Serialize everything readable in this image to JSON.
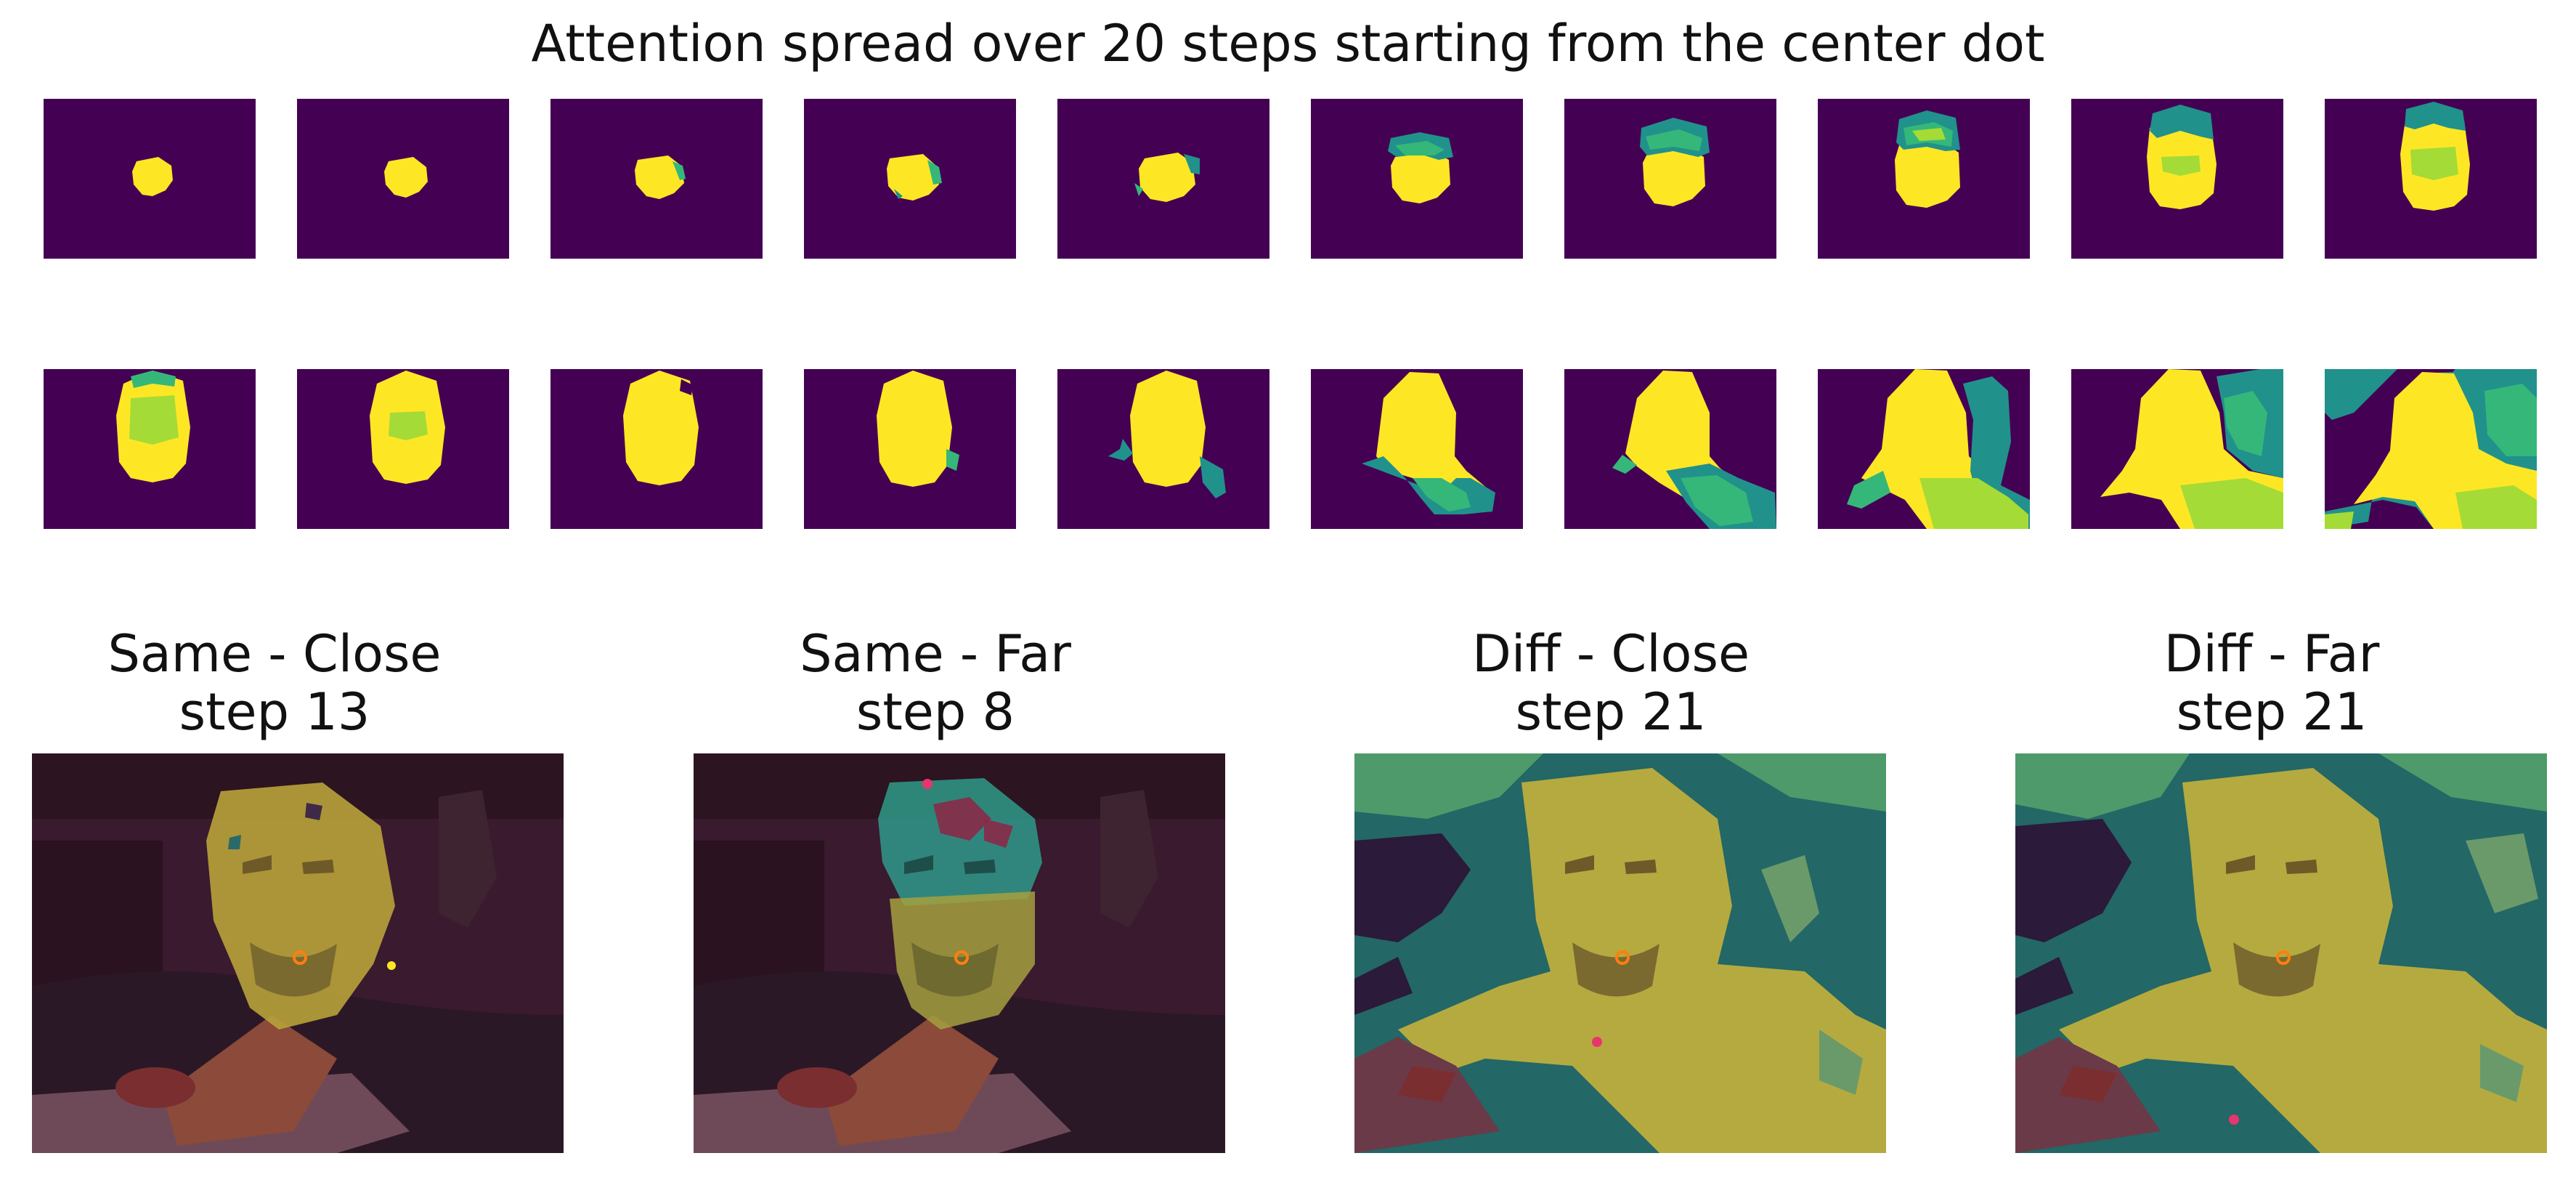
{
  "figure": {
    "title": "Attention spread over 20 steps starting from the center dot"
  },
  "colors": {
    "background_dark": "#440154",
    "attention_bright": "#fde725",
    "attention_mid": "#35b779",
    "attention_teal": "#21918c",
    "attention_lime": "#a5db36",
    "query_dot": "#ff7f0e",
    "target_dot": "#e8356e"
  },
  "mini_maps": {
    "count": 20,
    "rows": 2,
    "per_row": 10
  },
  "panels": [
    {
      "title_line1": "Same - Close",
      "title_line2": "step 13"
    },
    {
      "title_line1": "Same - Far",
      "title_line2": "step 8"
    },
    {
      "title_line1": "Diff - Close",
      "title_line2": "step 21"
    },
    {
      "title_line1": "Diff - Far",
      "title_line2": "step 21"
    }
  ]
}
